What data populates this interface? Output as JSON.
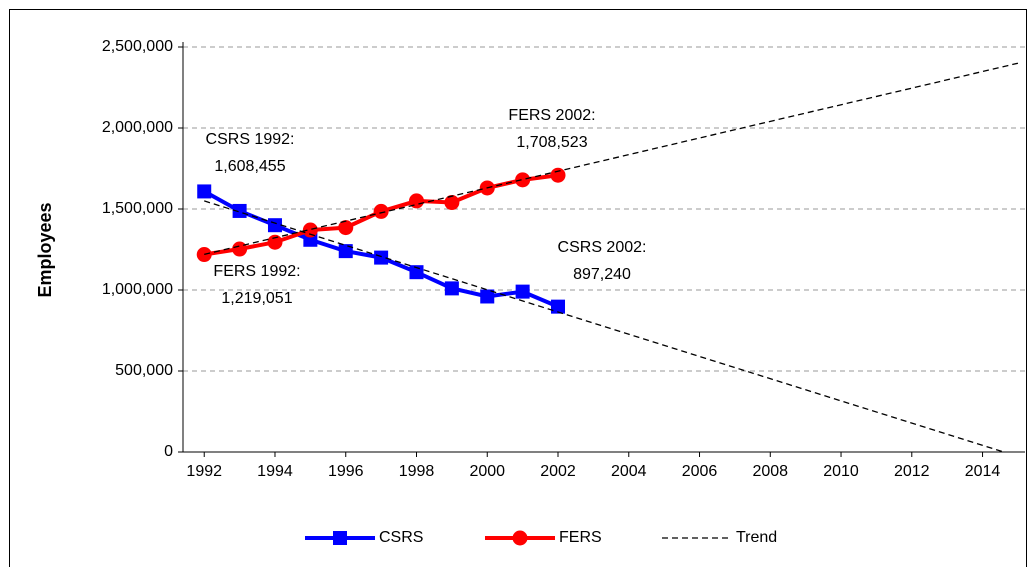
{
  "chart_data": {
    "type": "line",
    "y_label": "Employees",
    "xlim": [
      1991.4,
      2015.2
    ],
    "xticks": [
      1992,
      1994,
      1996,
      1998,
      2000,
      2002,
      2004,
      2006,
      2008,
      2010,
      2012,
      2014
    ],
    "ylim": [
      0,
      2500000
    ],
    "yticks": [
      0,
      {
        "value": 500000,
        "label": "500,000"
      },
      {
        "value": 1000000,
        "label": "1,000,000"
      },
      {
        "value": 1500000,
        "label": "1,500,000"
      },
      {
        "value": 2000000,
        "label": "2,000,000"
      },
      {
        "value": 2500000,
        "label": "2,500,000"
      }
    ],
    "grid": true,
    "series": [
      {
        "name": "CSRS",
        "color": "#0000ff",
        "marker": "square",
        "x": [
          1992,
          1993,
          1994,
          1995,
          1996,
          1997,
          1998,
          1999,
          2000,
          2001,
          2002
        ],
        "values": [
          1608455,
          1488000,
          1400000,
          1310000,
          1240000,
          1200000,
          1110000,
          1010000,
          960000,
          990000,
          897240
        ]
      },
      {
        "name": "FERS",
        "color": "#ff0000",
        "marker": "circle",
        "x": [
          1992,
          1993,
          1994,
          1995,
          1996,
          1997,
          1998,
          1999,
          2000,
          2001,
          2002
        ],
        "values": [
          1219051,
          1253000,
          1295000,
          1370000,
          1385000,
          1485000,
          1550000,
          1540000,
          1630000,
          1680000,
          1708523
        ]
      },
      {
        "name": "Trend",
        "color": "#000000",
        "dashed": true,
        "lines": [
          {
            "x": [
              1992,
              2015
            ],
            "values": [
              1220000,
              2400000
            ]
          },
          {
            "x": [
              1992,
              2014.6
            ],
            "values": [
              1550000,
              0
            ]
          }
        ]
      }
    ],
    "annotations": [
      [
        "CSRS 1992:",
        "1,608,455"
      ],
      [
        "FERS 2002:",
        "1,708,523"
      ],
      [
        "CSRS 2002:",
        "897,240"
      ],
      [
        "FERS 1992:",
        "1,219,051"
      ]
    ]
  }
}
